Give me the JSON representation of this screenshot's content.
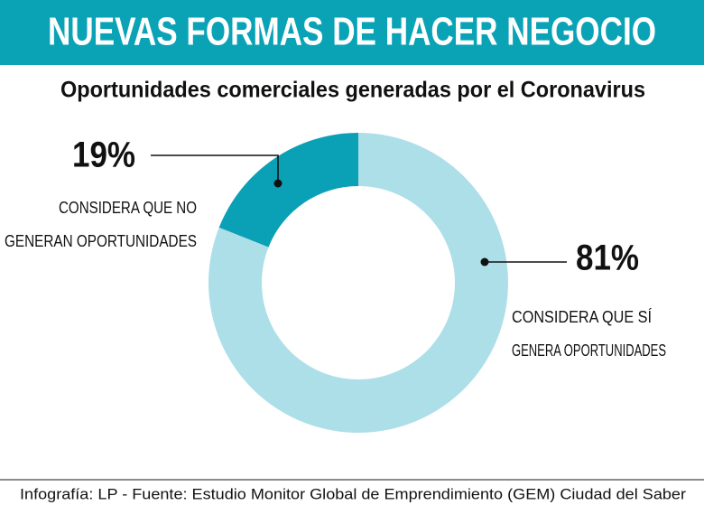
{
  "chart_data": {
    "type": "pie",
    "donut": true,
    "title": "NUEVAS FORMAS DE HACER NEGOCIO",
    "subtitle": "Oportunidades comerciales generadas por el Coronavirus",
    "categories": [
      [
        "CONSIDERA QUE NO",
        "GENERAN OPORTUNIDADES"
      ],
      [
        "CONSIDERA QUE SÍ",
        "GENERA OPORTUNIDADES"
      ]
    ],
    "values": [
      19,
      81
    ],
    "value_labels": [
      "19%",
      "81%"
    ],
    "colors": [
      "#0aa0b5",
      "#addfe9"
    ],
    "source": "Infografía: LP - Fuente: Estudio Monitor Global de Emprendimiento (GEM) Ciudad del Saber"
  }
}
